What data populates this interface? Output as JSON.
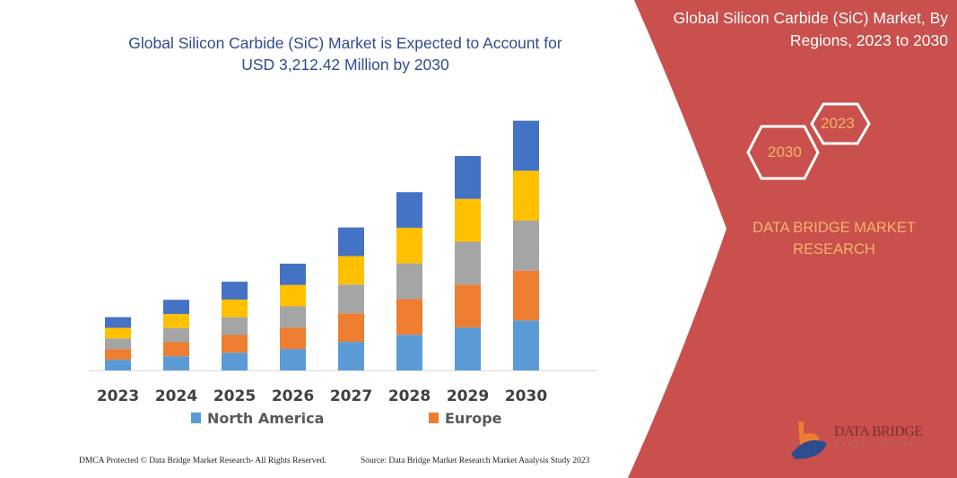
{
  "header": {
    "title_line1": "Global Silicon Carbide (SiC) Market is Expected to Account for",
    "title_line2": "USD 3,212.42 Million by 2030"
  },
  "side_panel": {
    "title_line1": "Global Silicon Carbide (SiC) Market, By",
    "title_line2": "Regions, 2023 to 2030",
    "hex_left": "2030",
    "hex_right": "2023",
    "brand_line1": "DATA BRIDGE MARKET",
    "brand_line2": "RESEARCH",
    "logo_text": "DATA BRIDGE",
    "logo_subtext": "MARKET RESEARCH",
    "panel_color": "#C9504D",
    "accent_text_color": "#F6B26B"
  },
  "footer": {
    "left": "DMCA Protected © Data Bridge Market Research-  All Rights Reserved.",
    "right": "Source: Data Bridge Market Research  Market Analysis Study 2023"
  },
  "chart_data": {
    "type": "bar",
    "stacked": true,
    "categories": [
      "2023",
      "2024",
      "2025",
      "2026",
      "2027",
      "2028",
      "2029",
      "2030"
    ],
    "ylabel": "",
    "xlabel": "",
    "grid": false,
    "legend_placement": "bottom",
    "series": [
      {
        "name": "North America",
        "color": "#5B9BD5",
        "values": [
          137,
          182,
          228,
          275,
          368,
          459,
          552,
          642
        ]
      },
      {
        "name": "Europe",
        "color": "#ED7D31",
        "values": [
          137,
          182,
          228,
          275,
          368,
          459,
          552,
          642
        ]
      },
      {
        "color": "#A5A5A5",
        "values": [
          137,
          182,
          228,
          275,
          368,
          459,
          552,
          643
        ]
      },
      {
        "color": "#FFC000",
        "values": [
          137,
          181,
          228,
          274,
          367,
          458,
          551,
          642
        ]
      },
      {
        "color": "#4472C4",
        "values": [
          137,
          181,
          229,
          274,
          368,
          458,
          551,
          643
        ]
      }
    ],
    "ylim": [
      0,
      3300
    ]
  }
}
